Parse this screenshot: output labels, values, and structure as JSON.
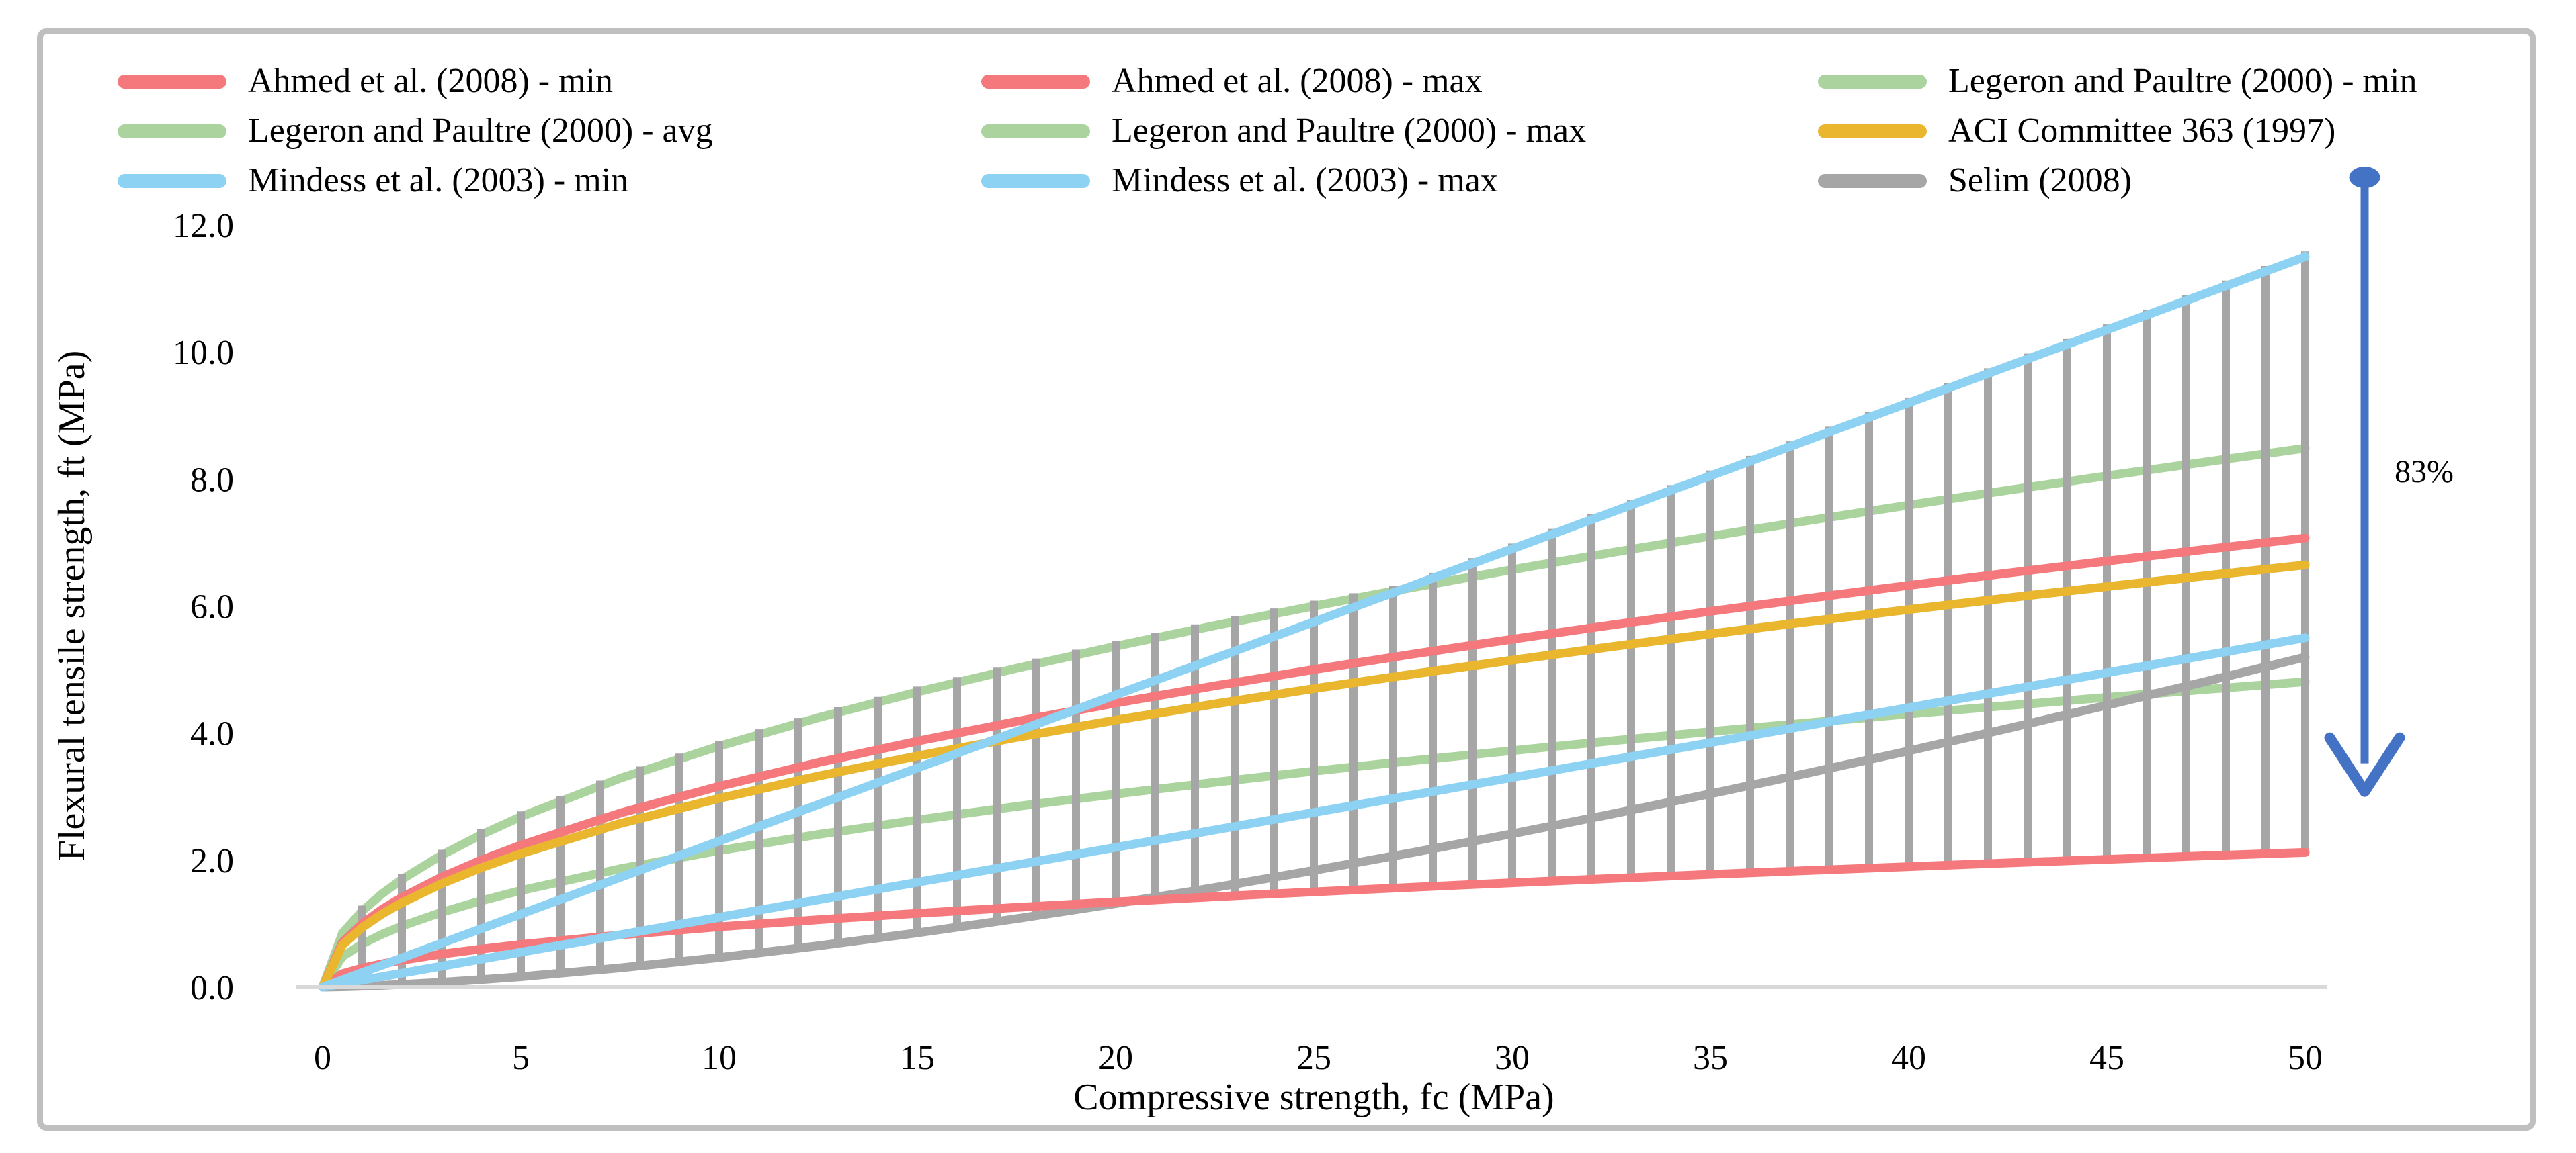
{
  "figure": {
    "border_color": "#bfbfbf",
    "background": "#ffffff",
    "axis_line_color": "#d9d9d9",
    "dropline_color": "#a6a6a6",
    "arrow_color": "#4472c4"
  },
  "legend": {
    "items": [
      {
        "id": "ahmed-min-key",
        "label": "Ahmed et al. (2008) - min",
        "color": "#f5797c"
      },
      {
        "id": "ahmed-max-key",
        "label": "Ahmed et al. (2008) - max",
        "color": "#f5797c"
      },
      {
        "id": "legeron-min-key",
        "label": "Legeron and Paultre (2000) - min",
        "color": "#abd39e"
      },
      {
        "id": "legeron-avg-key",
        "label": "Legeron and Paultre (2000) - avg",
        "color": "#abd39e"
      },
      {
        "id": "legeron-max-key",
        "label": "Legeron and Paultre (2000) - max",
        "color": "#abd39e"
      },
      {
        "id": "aci-363-key",
        "label": "ACI Committee 363 (1997)",
        "color": "#eab62e"
      },
      {
        "id": "mindess-min-key",
        "label": "Mindess et al. (2003) - min",
        "color": "#8dd2f2"
      },
      {
        "id": "mindess-max-key",
        "label": "Mindess et al. (2003) - max",
        "color": "#8dd2f2"
      },
      {
        "id": "selim-key",
        "label": "Selim (2008)",
        "color": "#a6a6a6"
      }
    ]
  },
  "chart_data": {
    "type": "line",
    "title": "",
    "xlabel": "Compressive strength, fc (MPa)",
    "ylabel": "Flexural tensile strength, ft (MPa)",
    "xlim": [
      0,
      50
    ],
    "ylim": [
      0,
      12
    ],
    "x_ticks": [
      0,
      5,
      10,
      15,
      20,
      25,
      30,
      35,
      40,
      45,
      50
    ],
    "y_ticks": [
      "0.0",
      "2.0",
      "4.0",
      "6.0",
      "8.0",
      "10.0",
      "12.0"
    ],
    "grid": false,
    "legend_position": "top",
    "x": [
      0,
      0.5,
      1,
      1.5,
      2,
      3,
      4,
      5,
      7.5,
      10,
      12.5,
      15,
      17.5,
      20,
      22.5,
      25,
      27.5,
      30,
      32.5,
      35,
      37.5,
      40,
      42.5,
      45,
      47.5,
      50
    ],
    "series": [
      {
        "id": "legeron-min",
        "name": "Legeron and Paultre (2000) - min",
        "color": "#abd39e",
        "values": [
          0,
          0.481,
          0.68,
          0.833,
          0.962,
          1.178,
          1.36,
          1.521,
          1.863,
          2.15,
          2.404,
          2.633,
          2.845,
          3.041,
          3.225,
          3.4,
          3.566,
          3.724,
          3.877,
          4.023,
          4.164,
          4.301,
          4.433,
          4.562,
          4.687,
          4.808
        ]
      },
      {
        "id": "legeron-avg",
        "name": "Legeron and Paultre (2000) - avg",
        "color": "#abd39e",
        "values": [
          0,
          0.665,
          0.94,
          1.151,
          1.329,
          1.628,
          1.88,
          2.102,
          2.575,
          2.972,
          3.323,
          3.64,
          3.932,
          4.204,
          4.459,
          4.7,
          4.929,
          5.148,
          5.359,
          5.561,
          5.757,
          5.945,
          6.128,
          6.306,
          6.478,
          6.647
        ]
      },
      {
        "id": "legeron-max",
        "name": "Legeron and Paultre (2000) - max",
        "color": "#abd39e",
        "values": [
          0,
          0.849,
          1.2,
          1.47,
          1.697,
          2.078,
          2.4,
          2.683,
          3.287,
          3.795,
          4.243,
          4.648,
          5.02,
          5.367,
          5.692,
          6,
          6.293,
          6.573,
          6.841,
          7.1,
          7.348,
          7.589,
          7.823,
          8.05,
          8.27,
          8.485
        ]
      },
      {
        "id": "selim",
        "name": "Selim (2008)",
        "color": "#a6a6a6",
        "values": [
          0,
          0.005,
          0.015,
          0.027,
          0.042,
          0.076,
          0.118,
          0.164,
          0.302,
          0.465,
          0.65,
          0.854,
          1.077,
          1.315,
          1.568,
          1.838,
          2.12,
          2.415,
          2.724,
          3.044,
          3.375,
          3.719,
          4.073,
          4.438,
          4.813,
          5.197
        ]
      },
      {
        "id": "ahmed-min",
        "name": "Ahmed et al. (2008) - min",
        "color": "#f5797c",
        "values": [
          0,
          0.212,
          0.3,
          0.367,
          0.424,
          0.52,
          0.6,
          0.671,
          0.822,
          0.949,
          1.061,
          1.162,
          1.255,
          1.342,
          1.423,
          1.5,
          1.573,
          1.643,
          1.71,
          1.775,
          1.837,
          1.897,
          1.956,
          2.012,
          2.068,
          2.121
        ]
      },
      {
        "id": "ahmed-max",
        "name": "Ahmed et al. (2008) - max",
        "color": "#f5797c",
        "values": [
          0,
          0.707,
          1,
          1.225,
          1.414,
          1.732,
          2,
          2.236,
          2.739,
          3.162,
          3.536,
          3.873,
          4.183,
          4.472,
          4.743,
          5,
          5.244,
          5.477,
          5.701,
          5.916,
          6.124,
          6.325,
          6.519,
          6.708,
          6.892,
          7.071
        ]
      },
      {
        "id": "aci-363",
        "name": "ACI Committee 363 (1997)",
        "color": "#eab62e",
        "values": [
          0,
          0.665,
          0.94,
          1.151,
          1.329,
          1.628,
          1.88,
          2.102,
          2.575,
          2.972,
          3.323,
          3.64,
          3.932,
          4.204,
          4.459,
          4.7,
          4.929,
          5.148,
          5.359,
          5.561,
          5.757,
          5.945,
          6.128,
          6.306,
          6.478,
          6.647
        ]
      },
      {
        "id": "mindess-min",
        "name": "Mindess et al. (2003) - min",
        "color": "#8dd2f2",
        "values": [
          0,
          0.055,
          0.11,
          0.165,
          0.22,
          0.33,
          0.44,
          0.55,
          0.825,
          1.1,
          1.375,
          1.65,
          1.925,
          2.2,
          2.475,
          2.75,
          3.025,
          3.3,
          3.575,
          3.85,
          4.125,
          4.4,
          4.675,
          4.95,
          5.225,
          5.5
        ]
      },
      {
        "id": "mindess-max",
        "name": "Mindess et al. (2003) - max",
        "color": "#8dd2f2",
        "values": [
          0,
          0.115,
          0.23,
          0.345,
          0.46,
          0.69,
          0.92,
          1.15,
          1.725,
          2.3,
          2.875,
          3.45,
          4.025,
          4.6,
          5.175,
          5.75,
          6.325,
          6.9,
          7.475,
          8.05,
          8.625,
          9.2,
          9.775,
          10.35,
          10.925,
          11.5
        ]
      }
    ],
    "droplines": {
      "from": 1,
      "to": 50,
      "step": 1,
      "note": "vertical range lines between min and max envelope of all series"
    },
    "annotation": {
      "label": "83%",
      "x_value": 51.5,
      "top_value": 12.75,
      "bottom_value": 3.08
    }
  }
}
